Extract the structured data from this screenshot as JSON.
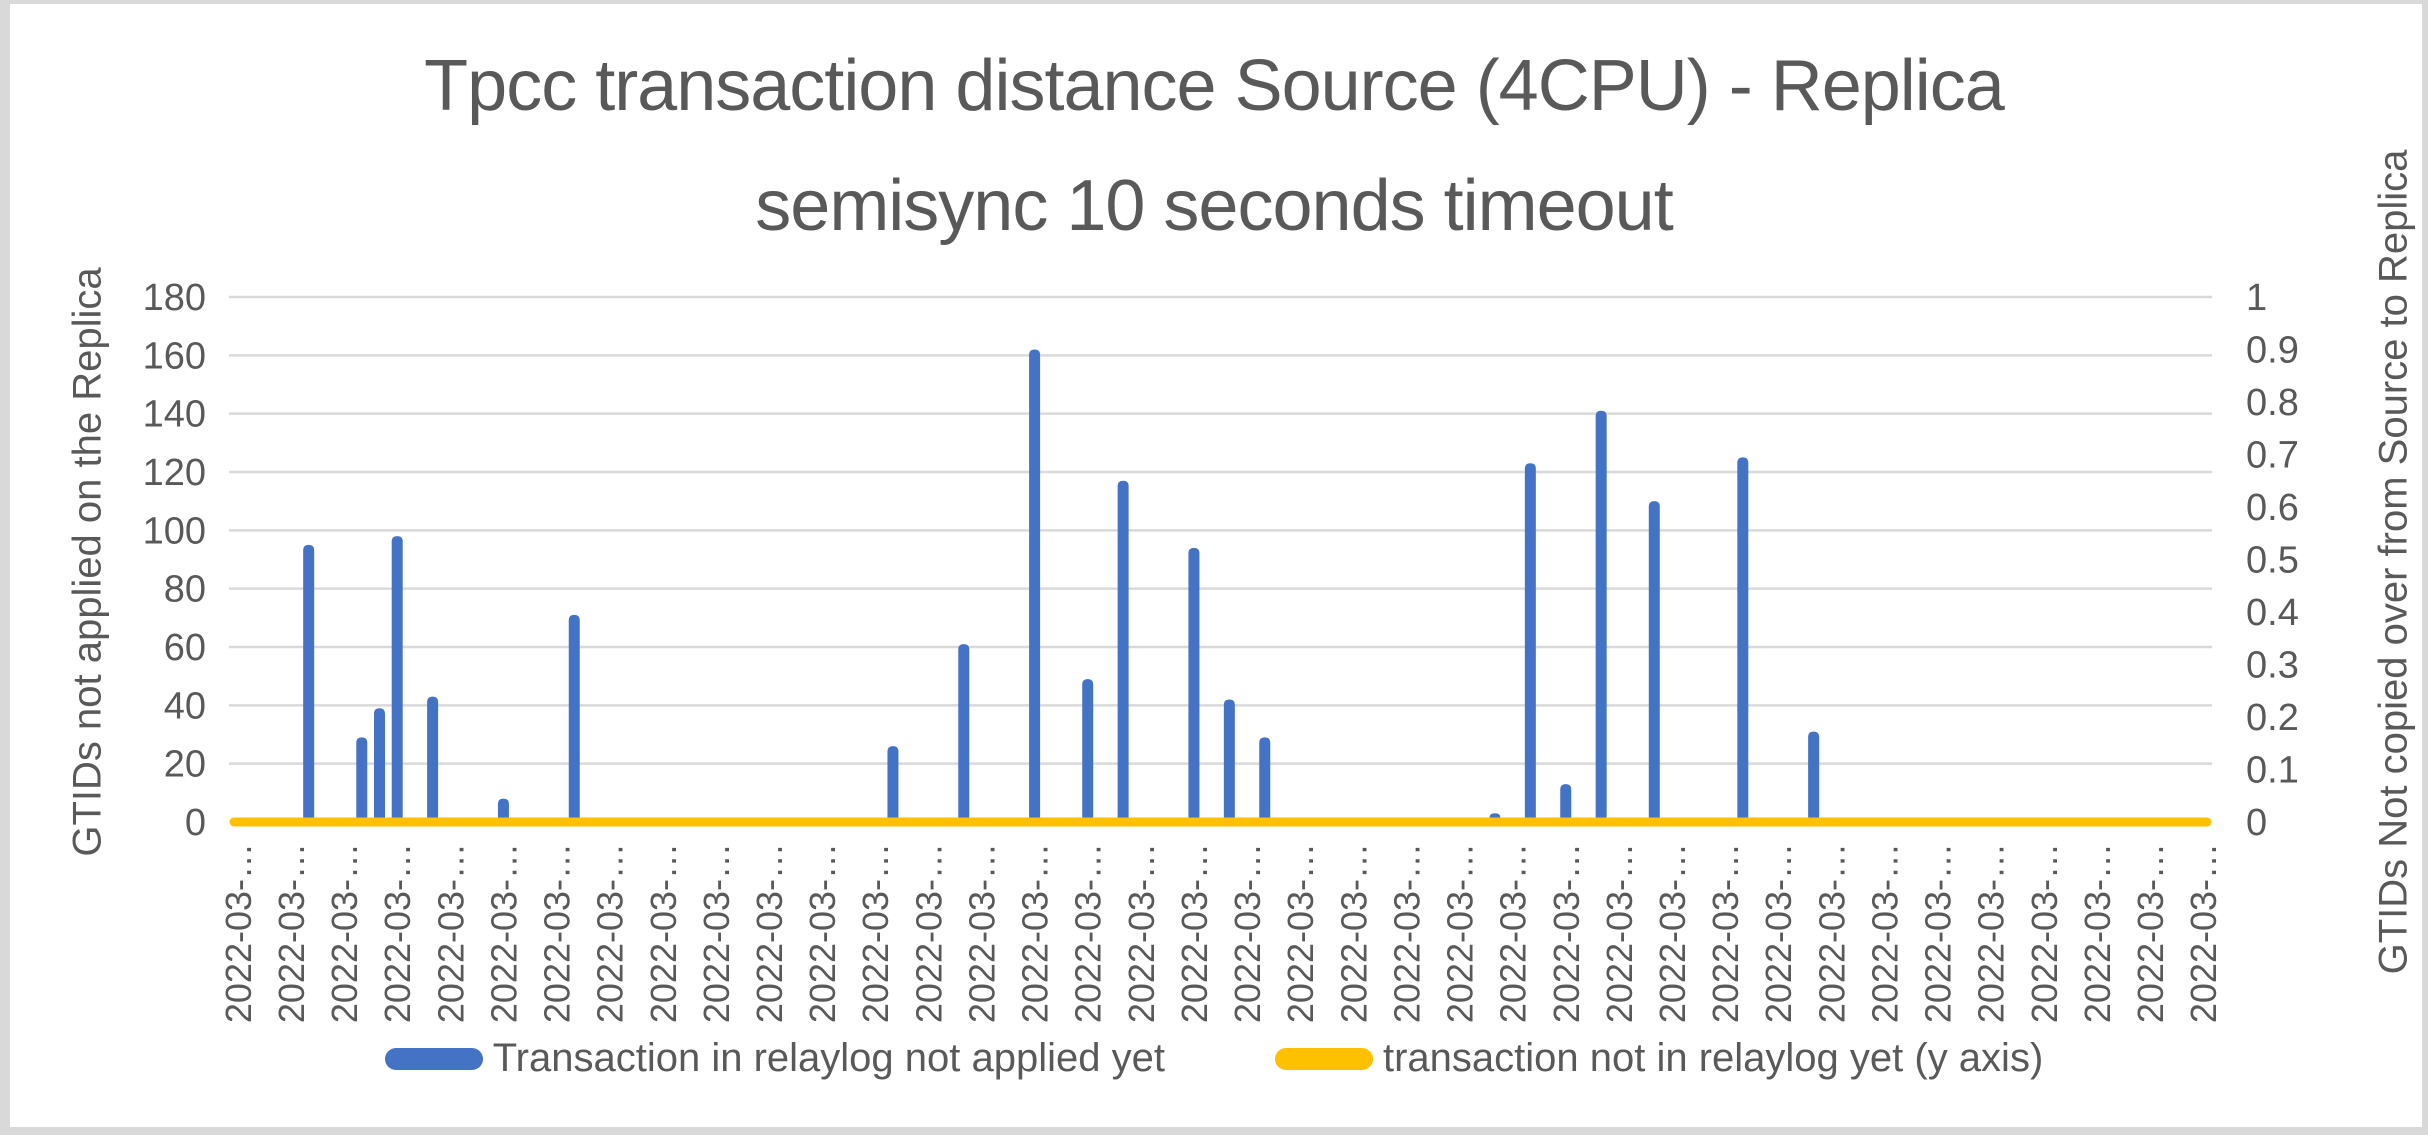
{
  "window": {
    "background": "#FFFFFF",
    "border_color": "#D9D9D9"
  },
  "title": {
    "line1": "Tpcc transaction distance Source (4CPU) - Replica",
    "line2": "semisync 10 seconds timeout",
    "color": "#595959"
  },
  "axes": {
    "left": {
      "title": "GTIDs not applied on the Replica",
      "ticks": [
        0,
        20,
        40,
        60,
        80,
        100,
        120,
        140,
        160,
        180
      ]
    },
    "right": {
      "title": "GTIDs Not copied over from Source to Replica",
      "ticks": [
        "0",
        "0.1",
        "0.2",
        "0.3",
        "0.4",
        "0.5",
        "0.6",
        "0.7",
        "0.8",
        "0.9",
        "1"
      ]
    },
    "x": {
      "tick_label": "2022-03-…",
      "shown_label_count": 38
    }
  },
  "legend": {
    "items": [
      {
        "label": "Transaction in relaylog not applied yet",
        "color": "#4472C4"
      },
      {
        "label": "transaction not in relaylog yet (y axis)",
        "color": "#FFC000"
      }
    ]
  },
  "chart_data": {
    "type": "bar",
    "title": "Tpcc transaction distance Source (4CPU) - Replica semisync 10 seconds timeout",
    "n_categories": 112,
    "x_tick_label_text": "2022-03-…",
    "x_label_every": 3,
    "xlabel": "",
    "ylabel_left": "GTIDs not applied on the Replica",
    "ylabel_right": "GTIDs Not copied over from Source to Replica",
    "ylim_left": [
      0,
      180
    ],
    "ytick_step_left": 20,
    "ylim_right": [
      0,
      1
    ],
    "ytick_step_right": 0.1,
    "gridlines": "horizontal",
    "legend_position": "bottom",
    "colors": {
      "grid": "#D9D9D9",
      "text": "#595959"
    },
    "series": [
      {
        "name": "Transaction in relaylog not applied yet",
        "type": "bar",
        "axis": "left",
        "color": "#4472C4",
        "default_value": 0,
        "nonzero_points": {
          "4": 95,
          "7": 29,
          "8": 39,
          "9": 98,
          "11": 43,
          "15": 8,
          "19": 71,
          "37": 26,
          "41": 61,
          "45": 162,
          "48": 49,
          "50": 117,
          "54": 94,
          "56": 42,
          "58": 29,
          "71": 3,
          "73": 123,
          "75": 13,
          "77": 141,
          "80": 110,
          "85": 125,
          "89": 31
        }
      },
      {
        "name": "transaction not in relaylog yet (y axis)",
        "type": "line",
        "axis": "right",
        "color": "#FFC000",
        "constant_value": 0
      }
    ]
  }
}
